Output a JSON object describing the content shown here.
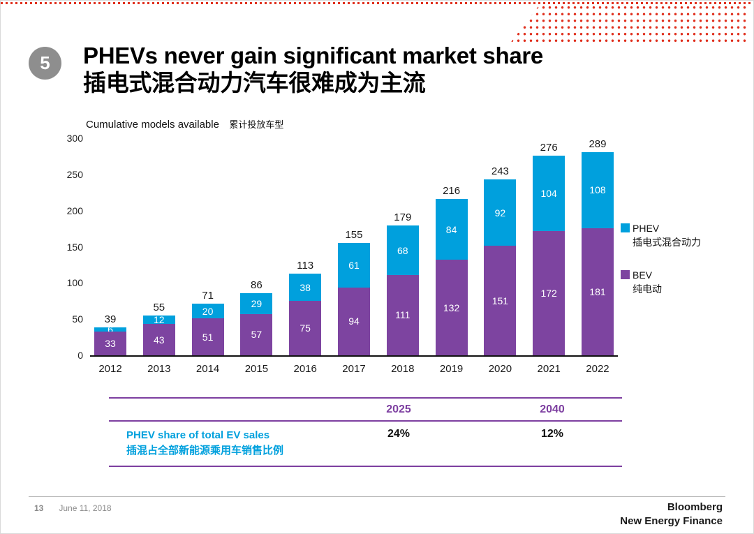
{
  "slide": {
    "number_badge": "5",
    "title_en": "PHEVs never gain significant market share",
    "title_zh": "插电式混合动力汽车很难成为主流"
  },
  "chart_data": {
    "type": "bar",
    "stacked": true,
    "title_en": "Cumulative models available",
    "title_zh": "累计投放车型",
    "categories": [
      "2012",
      "2013",
      "2014",
      "2015",
      "2016",
      "2017",
      "2018",
      "2019",
      "2020",
      "2021",
      "2022"
    ],
    "series": [
      {
        "name": "BEV",
        "name_zh": "纯电动",
        "color": "#7d44a0",
        "values": [
          33,
          43,
          51,
          57,
          75,
          94,
          111,
          132,
          151,
          172,
          181
        ]
      },
      {
        "name": "PHEV",
        "name_zh": "插电式混合动力",
        "color": "#00a0dd",
        "values": [
          6,
          12,
          20,
          29,
          38,
          61,
          68,
          84,
          92,
          104,
          108
        ]
      }
    ],
    "totals": [
      39,
      55,
      71,
      86,
      113,
      155,
      179,
      216,
      243,
      276,
      289
    ],
    "ylim": [
      0,
      300
    ],
    "yticks": [
      300,
      250,
      200,
      150,
      100,
      50,
      0
    ],
    "grid": false,
    "legend_position": "right"
  },
  "share_table": {
    "col_headers": [
      "2025",
      "2040"
    ],
    "row_label_en": "PHEV share of total EV sales",
    "row_label_zh": "插混占全部新能源乘用车销售比例",
    "values": [
      "24%",
      "12%"
    ]
  },
  "footer": {
    "page_number": "13",
    "date": "June 11, 2018",
    "brand_line1": "Bloomberg",
    "brand_line2": "New Energy Finance"
  },
  "colors": {
    "phev": "#00a0dd",
    "bev": "#7d44a0",
    "accent_red": "#e0301e",
    "table_line": "#7d3fa0"
  }
}
